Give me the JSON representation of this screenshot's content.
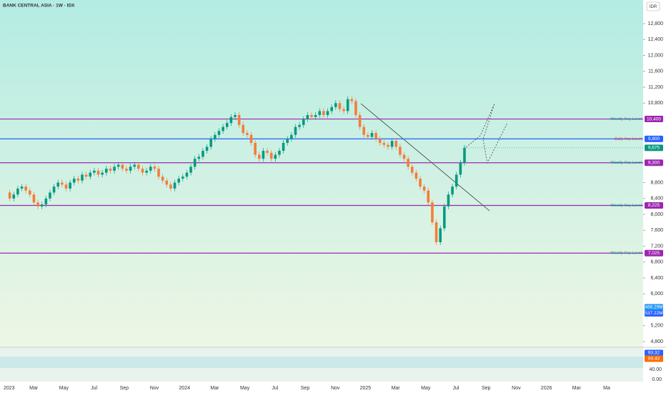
{
  "chart_data": {
    "type": "candlestick",
    "title": "BANK CENTRAL ASIA · 1W · IDX",
    "currency": "IDR",
    "ylim": [
      4656,
      13395
    ],
    "yticks": [
      {
        "value": 12800,
        "label": "12,800"
      },
      {
        "value": 12400,
        "label": "12,400"
      },
      {
        "value": 12000,
        "label": "12,000"
      },
      {
        "value": 11600,
        "label": "11,600"
      },
      {
        "value": 11200,
        "label": "11,200"
      },
      {
        "value": 10800,
        "label": "10,800"
      },
      {
        "value": 8800,
        "label": "8,800"
      },
      {
        "value": 8400,
        "label": "8,400"
      },
      {
        "value": 8000,
        "label": "8,000"
      },
      {
        "value": 7600,
        "label": "7,600"
      },
      {
        "value": 7200,
        "label": "7,200"
      },
      {
        "value": 6800,
        "label": "6,800"
      },
      {
        "value": 6400,
        "label": "6,400"
      },
      {
        "value": 6000,
        "label": "6,000"
      },
      {
        "value": 5200,
        "label": "5,200"
      },
      {
        "value": 4800,
        "label": "4,800"
      }
    ],
    "x_labels": [
      "2023",
      "Mar",
      "May",
      "Jul",
      "Sep",
      "Nov",
      "2024",
      "Mar",
      "May",
      "Jul",
      "Sep",
      "Nov",
      "2025",
      "Mar",
      "May",
      "Jul",
      "Sep",
      "Nov",
      "2026",
      "Mar",
      "Ma"
    ],
    "close": [
      8550,
      8400,
      8500,
      8650,
      8700,
      8600,
      8500,
      8300,
      8200,
      8250,
      8400,
      8550,
      8700,
      8800,
      8750,
      8650,
      8800,
      8900,
      8850,
      9000,
      8950,
      9050,
      9100,
      9000,
      9050,
      9150,
      9100,
      9200,
      9250,
      9150,
      9100,
      9200,
      9250,
      9150,
      9050,
      9100,
      9200,
      9150,
      8950,
      8850,
      8750,
      8650,
      8800,
      8900,
      8950,
      9050,
      9200,
      9400,
      9450,
      9600,
      9700,
      9900,
      10000,
      10100,
      10200,
      10300,
      10450,
      10500,
      10250,
      10050,
      10000,
      9800,
      9500,
      9400,
      9600,
      9550,
      9400,
      9500,
      9600,
      9800,
      9900,
      10000,
      10200,
      10250,
      10400,
      10500,
      10450,
      10500,
      10600,
      10500,
      10600,
      10700,
      10800,
      10650,
      10600,
      10900,
      10850,
      10500,
      10200,
      10000,
      9950,
      10050,
      9900,
      9800,
      9750,
      9700,
      9850,
      9700,
      9500,
      9400,
      9200,
      9050,
      8900,
      8700,
      8600,
      8300,
      7800,
      7300,
      7650,
      8200,
      8500,
      8700,
      9000,
      9300,
      9675
    ],
    "levels": [
      {
        "name": "Weekly Key Level",
        "value": 10400,
        "label": "10,400",
        "color": "#9c27b0"
      },
      {
        "name": "Daily Key Level",
        "value": 9900,
        "label": "9,900",
        "color": "#2962ff"
      },
      {
        "name": "Weekly Key Level",
        "value": 9300,
        "label": "9,300",
        "color": "#9c27b0"
      },
      {
        "name": "Weekly Key Level",
        "value": 8225,
        "label": "8,225",
        "color": "#9c27b0"
      },
      {
        "name": "Weekly Key Level",
        "value": 7025,
        "label": "7,025",
        "color": "#9c27b0"
      }
    ],
    "last_price": {
      "value": 9675,
      "label": "9,675"
    },
    "volume_tags": [
      "466.29M",
      "537.22M"
    ],
    "oscillator_tags": [
      "93.32",
      "84.43"
    ],
    "oscillator_ticks": [
      "40.00",
      "0.00"
    ],
    "up_color": "#089981",
    "down_color": "#f57c3b"
  }
}
